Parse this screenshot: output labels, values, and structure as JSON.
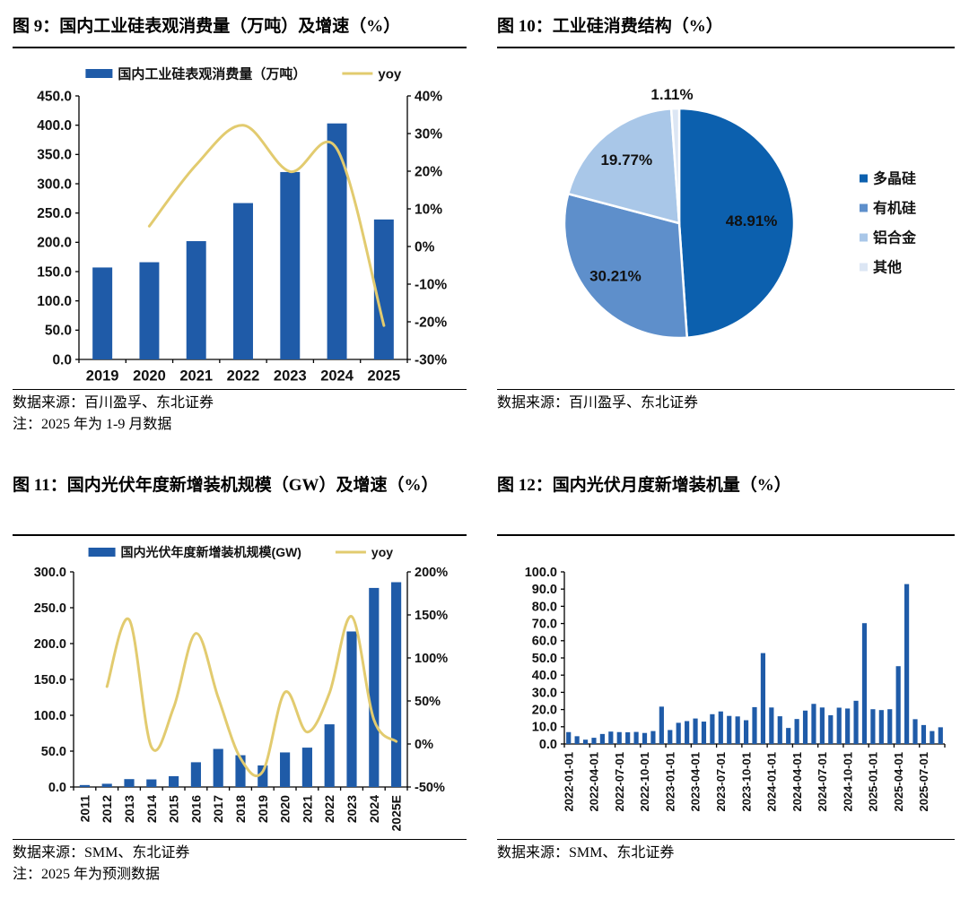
{
  "page_bg": "#ffffff",
  "colors": {
    "bar_blue": "#1F5BA8",
    "line_gold": "#E2CB6F",
    "axis_black": "#000000",
    "pie_palette": [
      "#0C60AE",
      "#5E8FCB",
      "#A9C7E8",
      "#DCE6F4"
    ]
  },
  "figures": [
    {
      "id": "fig9",
      "title": "图 9：国内工业硅表观消费量（万吨）及增速（%）",
      "source": "数据来源：百川盈孚、东北证券",
      "note": "注：2025 年为 1-9 月数据"
    },
    {
      "id": "fig10",
      "title": "图 10：工业硅消费结构（%）",
      "source": "数据来源：百川盈孚、东北证券",
      "note": ""
    },
    {
      "id": "fig11",
      "title": "图 11：国内光伏年度新增装机规模（GW）及增速（%）",
      "source": "数据来源：SMM、东北证券",
      "note": "注：2025 年为预测数据"
    },
    {
      "id": "fig12",
      "title": "图 12：国内光伏月度新增装机量（%）",
      "source": "数据来源：SMM、东北证券",
      "note": ""
    }
  ],
  "chart_data": [
    {
      "type": "bar+line",
      "title": "国内工业硅表观消费量（万吨）及增速（%）",
      "categories": [
        "2019",
        "2020",
        "2021",
        "2022",
        "2023",
        "2024",
        "2025"
      ],
      "series": [
        {
          "name": "国内工业硅表观消费量（万吨）",
          "type": "bar",
          "axis": "left",
          "color": "#1F5BA8",
          "values": [
            157.0,
            166.0,
            202.0,
            267.0,
            320.0,
            403.0,
            239.0
          ]
        },
        {
          "name": "yoy",
          "type": "line",
          "axis": "right",
          "color": "#E2CB6F",
          "values": [
            null,
            5.4,
            21.7,
            32.2,
            19.9,
            25.9,
            -21.0
          ]
        }
      ],
      "left_axis": {
        "min": 0,
        "max": 450,
        "step": 50,
        "format": "0.0"
      },
      "right_axis": {
        "min": -30,
        "max": 40,
        "step": 10,
        "format": "percent"
      },
      "legend_position": "top",
      "gridlines": false
    },
    {
      "type": "pie",
      "title": "工业硅消费结构（%）",
      "labels": [
        "多晶硅",
        "有机硅",
        "铝合金",
        "其他"
      ],
      "values": [
        48.91,
        30.21,
        19.77,
        1.11
      ],
      "data_labels": [
        "48.91%",
        "30.21%",
        "19.77%",
        "1.11%"
      ],
      "colors": [
        "#0C60AE",
        "#5E8FCB",
        "#A9C7E8",
        "#DCE6F4"
      ],
      "start_angle_deg": 0,
      "direction": "clockwise",
      "legend_position": "right"
    },
    {
      "type": "bar+line",
      "title": "国内光伏年度新增装机规模（GW）及增速（%）",
      "categories": [
        "2011",
        "2012",
        "2013",
        "2014",
        "2015",
        "2016",
        "2017",
        "2018",
        "2019",
        "2020",
        "2021",
        "2022",
        "2023",
        "2024",
        "2025E"
      ],
      "series": [
        {
          "name": "国内光伏年度新增装机规模(GW)",
          "type": "bar",
          "axis": "left",
          "color": "#1F5BA8",
          "values": [
            2.7,
            4.5,
            11.0,
            10.6,
            15.1,
            34.5,
            53.1,
            44.3,
            30.1,
            48.2,
            54.9,
            87.4,
            216.9,
            277.6,
            285.6
          ]
        },
        {
          "name": "yoy",
          "type": "line",
          "axis": "right",
          "color": "#E2CB6F",
          "values": [
            null,
            66.7,
            144.4,
            -3.6,
            42.5,
            128.5,
            53.9,
            -16.6,
            -32.1,
            60.1,
            13.9,
            59.2,
            148.1,
            28.0,
            2.9
          ]
        }
      ],
      "left_axis": {
        "min": 0,
        "max": 300,
        "step": 50,
        "format": "0.0"
      },
      "right_axis": {
        "min": -50,
        "max": 200,
        "step": 50,
        "format": "percent"
      },
      "legend_position": "top",
      "gridlines": false,
      "x_label_rotation": 90
    },
    {
      "type": "bar",
      "title": "国内光伏月度新增装机量（%）",
      "categories": [
        "2022-01-01",
        "2022-02-01",
        "2022-03-01",
        "2022-04-01",
        "2022-05-01",
        "2022-06-01",
        "2022-07-01",
        "2022-08-01",
        "2022-09-01",
        "2022-10-01",
        "2022-11-01",
        "2022-12-01",
        "2023-01-01",
        "2023-02-01",
        "2023-03-01",
        "2023-04-01",
        "2023-05-01",
        "2023-06-01",
        "2023-07-01",
        "2023-08-01",
        "2023-09-01",
        "2023-10-01",
        "2023-11-01",
        "2023-12-01",
        "2024-01-01",
        "2024-02-01",
        "2024-03-01",
        "2024-04-01",
        "2024-05-01",
        "2024-06-01",
        "2024-07-01",
        "2024-08-01",
        "2024-09-01",
        "2024-10-01",
        "2024-11-01",
        "2024-12-01",
        "2025-01-01",
        "2025-02-01",
        "2025-03-01",
        "2025-04-01",
        "2025-05-01",
        "2025-06-01",
        "2025-07-01",
        "2025-08-01",
        "2025-09-01"
      ],
      "values": [
        6.9,
        4.5,
        2.5,
        3.6,
        5.8,
        7.2,
        6.9,
        6.8,
        7.0,
        6.4,
        7.5,
        21.7,
        8.1,
        12.3,
        13.3,
        14.8,
        13.0,
        17.3,
        18.9,
        16.3,
        16.0,
        13.8,
        21.4,
        52.8,
        21.2,
        16.1,
        9.3,
        14.5,
        19.4,
        23.3,
        21.2,
        16.7,
        21.1,
        20.6,
        25.1,
        70.2,
        20.2,
        19.7,
        20.2,
        45.2,
        92.9,
        14.4,
        11.0,
        7.5,
        9.7
      ],
      "bar_color": "#1F5BA8",
      "left_axis": {
        "min": 0,
        "max": 100,
        "step": 10,
        "format": "0.0"
      },
      "x_label_every": 3,
      "x_label_rotation": 90,
      "gridlines": false
    }
  ]
}
